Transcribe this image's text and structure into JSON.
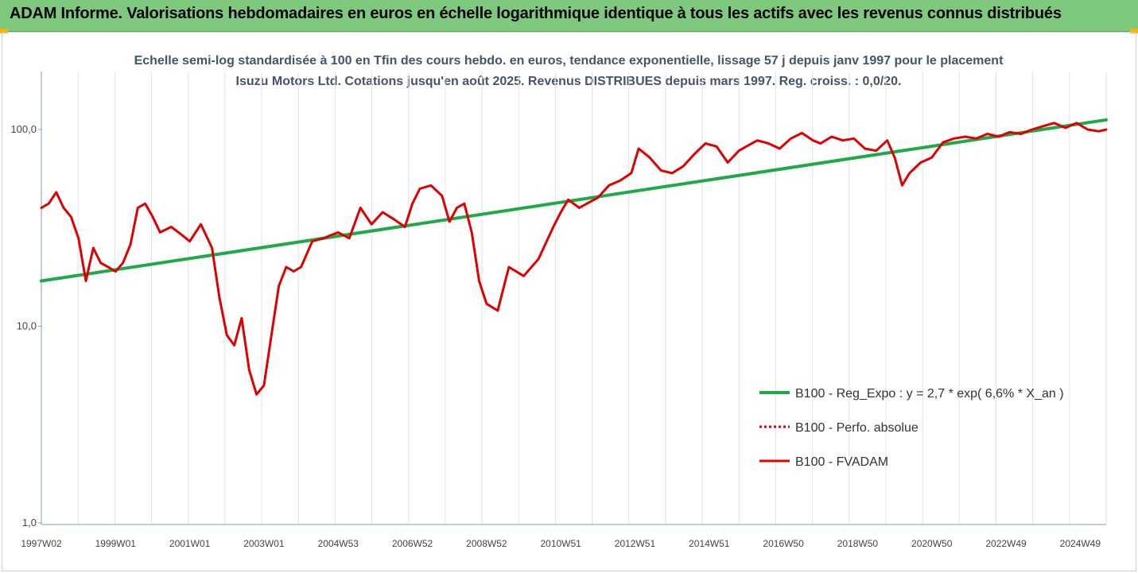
{
  "header": {
    "title": "ADAM Informe. Valorisations hebdomadaires en euros en échelle logarithmique identique à tous les actifs avec les revenus connus distribués",
    "accent_color": "#7fc97f",
    "corner_color": "#f4b400"
  },
  "chart_data": {
    "type": "line",
    "title": "Echelle semi-log standardisée à 100 en Tfin des cours hebdo. en euros, tendance exponentielle, lissage 57 j depuis janv 1997 pour le placement Isuzu Motors Ltd. Cotations jusqu'en août 2025. Revenus DISTRIBUES depuis mars 1997. Reg. croiss. : 0,0/20.",
    "y_scale": "log",
    "ylim": [
      1,
      200
    ],
    "y_ticks": [
      {
        "value": 100,
        "label": "100,0"
      },
      {
        "value": 10,
        "label": "10,0"
      },
      {
        "value": 1,
        "label": "1,0"
      }
    ],
    "xlim": [
      1997.0,
      2025.7
    ],
    "x_ticks": [
      {
        "value": 1997.0,
        "label": "1997W02"
      },
      {
        "value": 1999.0,
        "label": "1999W01"
      },
      {
        "value": 2001.0,
        "label": "2001W01"
      },
      {
        "value": 2003.0,
        "label": "2003W01"
      },
      {
        "value": 2005.0,
        "label": "2004W53"
      },
      {
        "value": 2007.0,
        "label": "2006W52"
      },
      {
        "value": 2009.0,
        "label": "2008W52"
      },
      {
        "value": 2011.0,
        "label": "2010W51"
      },
      {
        "value": 2013.0,
        "label": "2012W51"
      },
      {
        "value": 2015.0,
        "label": "2014W51"
      },
      {
        "value": 2017.0,
        "label": "2016W50"
      },
      {
        "value": 2019.0,
        "label": "2018W50"
      },
      {
        "value": 2021.0,
        "label": "2020W50"
      },
      {
        "value": 2023.0,
        "label": "2022W49"
      },
      {
        "value": 2025.0,
        "label": "2024W49"
      }
    ],
    "grid": "vertical",
    "legend_position": "right",
    "series": [
      {
        "name": "B100 - Reg_Expo : y = 2,7 * exp( 6,6% *  X_an )",
        "color": "#1faa4a",
        "style": "solid",
        "x": [
          1997.0,
          2025.7
        ],
        "values": [
          17,
          112
        ]
      },
      {
        "name": "B100 - Perfo. absolue",
        "color": "#e00000",
        "style": "dotted",
        "x": [],
        "values": []
      },
      {
        "name": "B100 - FVADAM",
        "color": "#e00000",
        "style": "solid",
        "x": [
          1997.0,
          1997.2,
          1997.4,
          1997.6,
          1997.8,
          1998.0,
          1998.2,
          1998.4,
          1998.6,
          1998.8,
          1999.0,
          1999.2,
          1999.4,
          1999.6,
          1999.8,
          2000.0,
          2000.2,
          2000.5,
          2000.8,
          2001.0,
          2001.3,
          2001.6,
          2001.8,
          2002.0,
          2002.2,
          2002.4,
          2002.6,
          2002.8,
          2003.0,
          2003.2,
          2003.4,
          2003.6,
          2003.8,
          2004.0,
          2004.3,
          2004.6,
          2005.0,
          2005.3,
          2005.6,
          2005.9,
          2006.2,
          2006.5,
          2006.8,
          2007.0,
          2007.2,
          2007.5,
          2007.8,
          2008.0,
          2008.2,
          2008.4,
          2008.6,
          2008.8,
          2009.0,
          2009.3,
          2009.6,
          2010.0,
          2010.4,
          2010.8,
          2011.0,
          2011.2,
          2011.5,
          2011.8,
          2012.0,
          2012.3,
          2012.6,
          2012.9,
          2013.1,
          2013.4,
          2013.7,
          2014.0,
          2014.3,
          2014.6,
          2014.9,
          2015.2,
          2015.5,
          2015.8,
          2016.0,
          2016.3,
          2016.6,
          2016.9,
          2017.2,
          2017.5,
          2017.8,
          2018.0,
          2018.3,
          2018.6,
          2018.9,
          2019.2,
          2019.5,
          2019.8,
          2020.0,
          2020.2,
          2020.4,
          2020.7,
          2021.0,
          2021.3,
          2021.6,
          2021.9,
          2022.2,
          2022.5,
          2022.8,
          2023.1,
          2023.4,
          2023.7,
          2024.0,
          2024.3,
          2024.6,
          2024.9,
          2025.2,
          2025.5,
          2025.7
        ],
        "values": [
          40,
          42,
          48,
          40,
          36,
          28,
          17,
          25,
          21,
          20,
          19,
          21,
          26,
          40,
          42,
          36,
          30,
          32,
          29,
          27,
          33,
          25,
          14,
          9,
          8,
          11,
          6,
          4.5,
          5,
          9,
          16,
          20,
          19,
          20,
          27,
          28,
          30,
          28,
          40,
          33,
          38,
          35,
          32,
          42,
          50,
          52,
          46,
          34,
          40,
          42,
          30,
          17,
          13,
          12,
          20,
          18,
          22,
          32,
          38,
          44,
          40,
          43,
          45,
          52,
          55,
          60,
          80,
          72,
          62,
          60,
          65,
          75,
          85,
          82,
          68,
          78,
          82,
          88,
          85,
          80,
          90,
          96,
          88,
          85,
          92,
          88,
          90,
          80,
          78,
          88,
          72,
          52,
          60,
          68,
          72,
          86,
          90,
          92,
          90,
          95,
          92,
          97,
          95,
          100,
          104,
          108,
          102,
          108,
          100,
          98,
          100
        ]
      }
    ]
  }
}
